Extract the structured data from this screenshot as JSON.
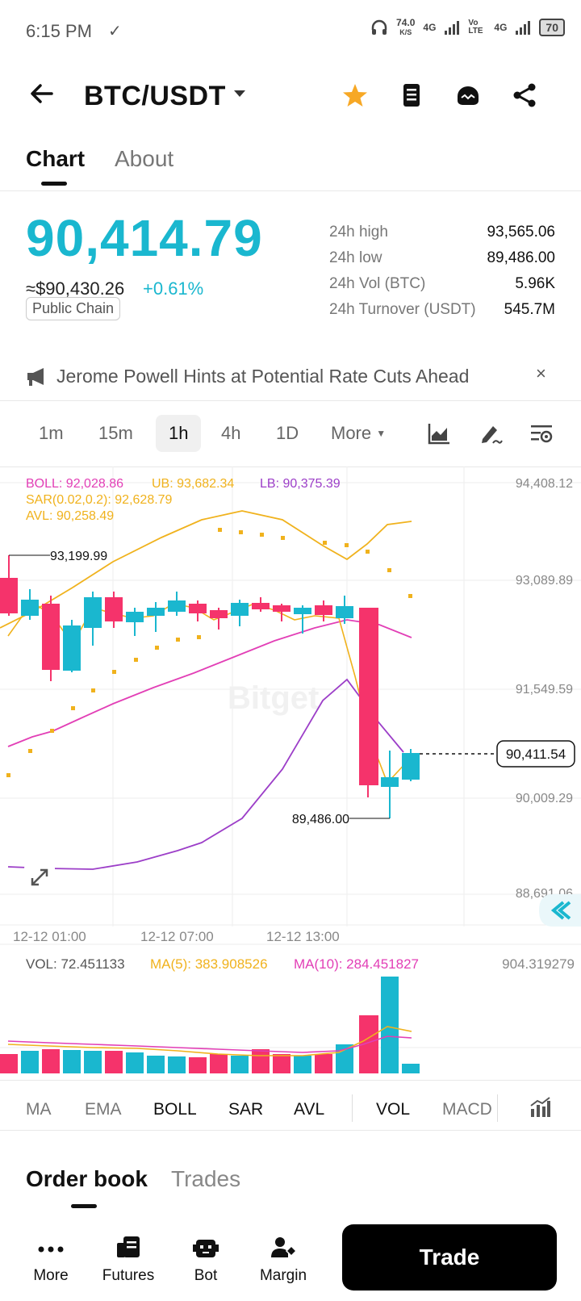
{
  "status_bar": {
    "time": "6:15 PM",
    "speed_value": "74.0",
    "speed_unit": "K/S",
    "net1": "4G",
    "net2": "Vo LTE",
    "net3": "4G",
    "battery": "70"
  },
  "header": {
    "pair": "BTC/USDT",
    "icons": [
      "back-arrow-icon",
      "star-icon",
      "notes-icon",
      "tiger-icon",
      "share-icon"
    ]
  },
  "tabs": [
    {
      "label": "Chart",
      "active": true
    },
    {
      "label": "About",
      "active": false
    }
  ],
  "price": {
    "last": "90,414.79",
    "usd": "≈$90,430.26",
    "change": "+0.61%",
    "badge": "Public Chain"
  },
  "stats": [
    {
      "label": "24h high",
      "value": "93,565.06"
    },
    {
      "label": "24h low",
      "value": "89,486.00"
    },
    {
      "label": "24h Vol (BTC)",
      "value": "5.96K"
    },
    {
      "label": "24h Turnover (USDT)",
      "value": "545.7M"
    }
  ],
  "news": {
    "text": "Jerome Powell Hints at Potential Rate Cuts Ahead",
    "close": "×"
  },
  "intervals": [
    {
      "label": "1m",
      "active": false
    },
    {
      "label": "15m",
      "active": false
    },
    {
      "label": "1h",
      "active": true
    },
    {
      "label": "4h",
      "active": false
    },
    {
      "label": "1D",
      "active": false
    },
    {
      "label": "More",
      "active": false
    }
  ],
  "chart": {
    "legend": {
      "boll": "BOLL: 92,028.86",
      "ub": "UB: 93,682.34",
      "lb": "LB: 90,375.39",
      "sar": "SAR(0.02,0.2): 92,628.79",
      "avl": "AVL: 90,258.49"
    },
    "price_axis": [
      "94,408.12",
      "93,089.89",
      "91,549.59",
      "90,009.29",
      "88,691.06"
    ],
    "current_price_tag": "90,411.54",
    "high_marker": "93,199.99",
    "low_marker": "89,486.00",
    "time_axis": [
      "12-12 01:00",
      "12-12 07:00",
      "12-12 13:00"
    ],
    "watermark": "Bitget",
    "vol_legend": {
      "vol": "VOL: 72.451133",
      "ma5": "MA(5): 383.908526",
      "ma10": "MA(10): 284.451827"
    },
    "vol_axis_max": "904.319279",
    "colors": {
      "up": "#1ab7cf",
      "down": "#f5336b",
      "boll_mid": "#e23fb6",
      "boll_upper": "#f0b21d",
      "boll_lower": "#9c3ec8"
    }
  },
  "indicators": [
    {
      "label": "MA",
      "active": false
    },
    {
      "label": "EMA",
      "active": false
    },
    {
      "label": "BOLL",
      "active": true
    },
    {
      "label": "SAR",
      "active": true
    },
    {
      "label": "AVL",
      "active": true
    },
    {
      "label": "VOL",
      "active": true
    },
    {
      "label": "MACD",
      "active": false
    }
  ],
  "orderbook_tabs": [
    {
      "label": "Order book",
      "active": true
    },
    {
      "label": "Trades",
      "active": false
    }
  ],
  "bottom_nav": [
    {
      "label": "More",
      "icon": "dots-icon"
    },
    {
      "label": "Futures",
      "icon": "futures-icon"
    },
    {
      "label": "Bot",
      "icon": "bot-icon"
    },
    {
      "label": "Margin",
      "icon": "margin-icon"
    }
  ],
  "trade_button": "Trade"
}
